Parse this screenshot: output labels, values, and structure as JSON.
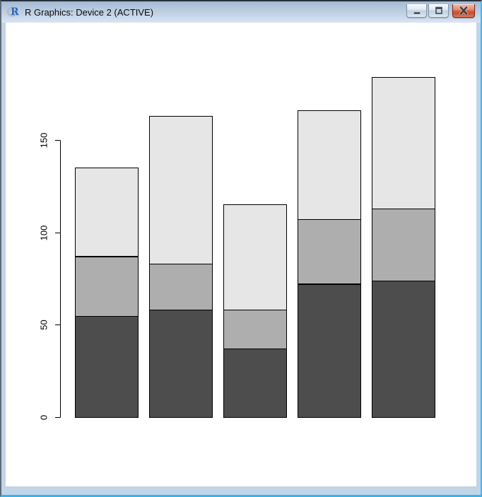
{
  "window": {
    "title": "R Graphics: Device 2 (ACTIVE)",
    "icon_letter": "R",
    "controls": [
      {
        "name": "minimize",
        "label": "Minimize"
      },
      {
        "name": "maximize",
        "label": "Maximize"
      },
      {
        "name": "close",
        "label": "Close"
      }
    ]
  },
  "theme": {
    "titlebar_top": "#a4bad4",
    "titlebar_bottom": "#d9e4f2",
    "frame": "#c3d4e8",
    "edge_highlight": "#31b6ec",
    "close_button": "#d05c3e"
  },
  "chart_data": {
    "type": "bar",
    "stacked": true,
    "title": "",
    "xlabel": "",
    "ylabel": "",
    "categories": [
      "",
      "",
      "",
      "",
      ""
    ],
    "series": [
      {
        "name": "bottom-segment",
        "color": "#4D4D4D",
        "values": [
          55,
          58,
          37,
          72,
          74
        ]
      },
      {
        "name": "middle-segment",
        "color": "#AEAEAE",
        "values": [
          32,
          25,
          21,
          35,
          39
        ]
      },
      {
        "name": "top-segment",
        "color": "#E6E6E6",
        "values": [
          48,
          80,
          57,
          59,
          71
        ]
      }
    ],
    "totals": [
      135,
      163,
      115,
      166,
      184
    ],
    "y_ticks": [
      0,
      50,
      100,
      150
    ],
    "ylim": [
      0,
      190
    ],
    "y_tick_labels_rotated": true,
    "bar_border": "#000000",
    "axis_color": "#000000",
    "background": "#FFFFFF",
    "grid": false,
    "legend": "none",
    "x_axis_line": false
  }
}
